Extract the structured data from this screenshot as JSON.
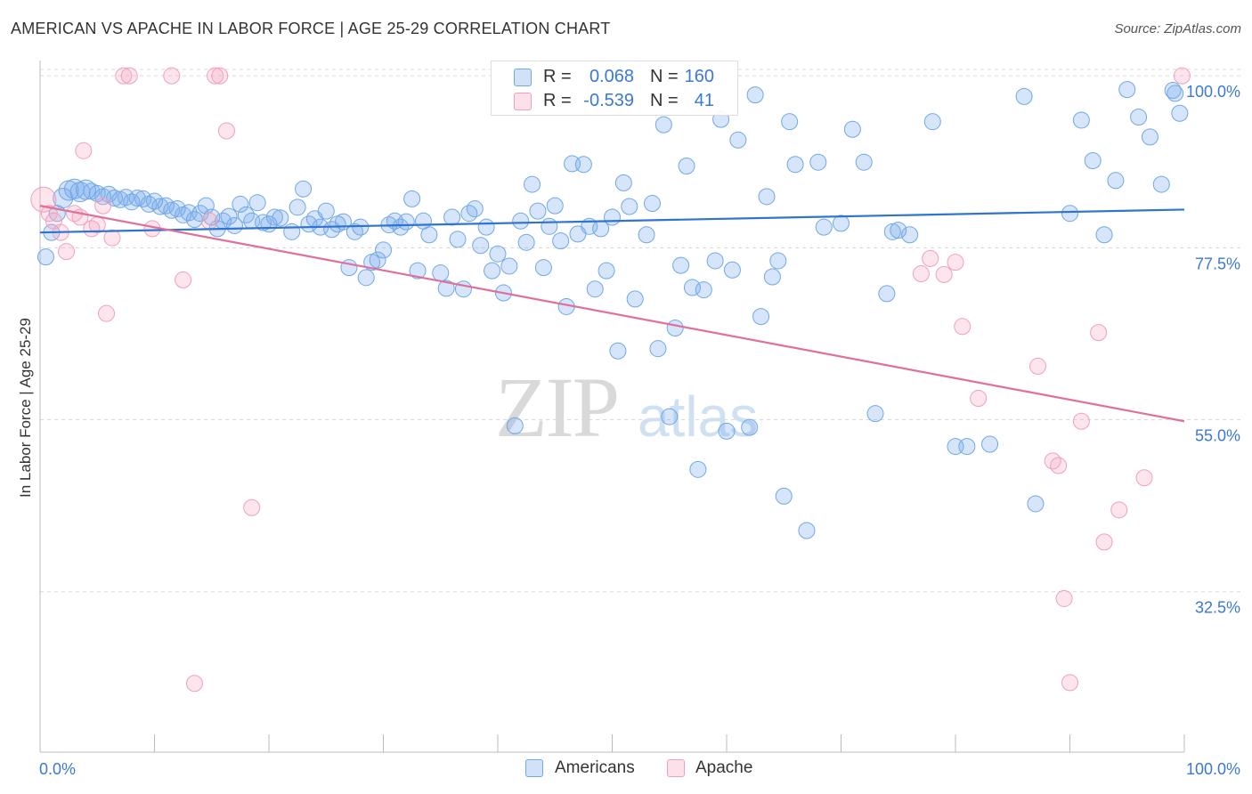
{
  "title": "AMERICAN VS APACHE IN LABOR FORCE | AGE 25-29 CORRELATION CHART",
  "source": "Source: ZipAtlas.com",
  "watermark": {
    "zip": "ZIP",
    "atlas": "atlas"
  },
  "legend": {
    "rows": [
      {
        "r_label": "R =",
        "r_value": "0.068",
        "n_label": "N =",
        "n_value": "160",
        "color": "#6fa8e8"
      },
      {
        "r_label": "R =",
        "r_value": "-0.539",
        "n_label": "N =",
        "n_value": "41",
        "color": "#f0a0bb"
      }
    ]
  },
  "bottom_legend": {
    "americans": "Americans",
    "apache": "Apache"
  },
  "chart_data": {
    "type": "scatter",
    "title": "AMERICAN VS APACHE IN LABOR FORCE | AGE 25-29 CORRELATION CHART",
    "xlabel": "",
    "ylabel": "In Labor Force | Age 25-29",
    "xlim": [
      0,
      100
    ],
    "ylim": [
      11.5,
      102
    ],
    "x_tick_labels": [
      "0.0%",
      "100.0%"
    ],
    "y_ticks": [
      32.5,
      55.0,
      77.5,
      100.0
    ],
    "y_tick_labels": [
      "32.5%",
      "55.0%",
      "77.5%",
      "100.0%"
    ],
    "grid": true,
    "series": [
      {
        "name": "Americans",
        "color": "#6fa8e8",
        "fill": "rgba(120,170,235,0.30)",
        "trend": {
          "x": [
            0,
            100
          ],
          "y": [
            79.5,
            82.5
          ]
        },
        "points": [
          [
            0.5,
            76.3
          ],
          [
            1.0,
            79.5
          ],
          [
            1.5,
            82.0
          ],
          [
            2.0,
            84.0
          ],
          [
            2.5,
            85.0
          ],
          [
            3.0,
            85.2
          ],
          [
            3.5,
            84.8
          ],
          [
            4.0,
            85.1
          ],
          [
            4.5,
            84.9
          ],
          [
            5.0,
            84.6
          ],
          [
            5.5,
            84.2
          ],
          [
            6.0,
            84.5
          ],
          [
            6.5,
            84.0
          ],
          [
            7.0,
            83.8
          ],
          [
            7.5,
            84.1
          ],
          [
            8.0,
            83.5
          ],
          [
            8.5,
            84.0
          ],
          [
            9.0,
            83.9
          ],
          [
            9.5,
            83.2
          ],
          [
            10.0,
            83.6
          ],
          [
            10.5,
            82.9
          ],
          [
            11.0,
            83.0
          ],
          [
            11.5,
            82.4
          ],
          [
            12.0,
            82.6
          ],
          [
            12.5,
            81.8
          ],
          [
            13.0,
            82.1
          ],
          [
            13.5,
            81.2
          ],
          [
            14.0,
            82.0
          ],
          [
            14.5,
            83.0
          ],
          [
            15.0,
            81.5
          ],
          [
            15.5,
            80.0
          ],
          [
            16.0,
            81.0
          ],
          [
            16.5,
            81.6
          ],
          [
            17.0,
            80.4
          ],
          [
            17.5,
            83.2
          ],
          [
            18.0,
            81.8
          ],
          [
            18.5,
            81.0
          ],
          [
            19.0,
            83.4
          ],
          [
            19.5,
            80.8
          ],
          [
            20.0,
            80.6
          ],
          [
            20.5,
            81.5
          ],
          [
            21.0,
            81.4
          ],
          [
            22.0,
            79.6
          ],
          [
            22.5,
            82.8
          ],
          [
            23.0,
            85.2
          ],
          [
            23.5,
            80.6
          ],
          [
            24.0,
            81.3
          ],
          [
            24.5,
            80.2
          ],
          [
            25.0,
            82.3
          ],
          [
            25.5,
            79.9
          ],
          [
            26.0,
            80.6
          ],
          [
            26.5,
            80.9
          ],
          [
            27.0,
            74.9
          ],
          [
            27.5,
            79.6
          ],
          [
            28.0,
            80.2
          ],
          [
            28.5,
            73.6
          ],
          [
            29.0,
            75.6
          ],
          [
            29.5,
            75.9
          ],
          [
            30.0,
            77.2
          ],
          [
            30.5,
            80.5
          ],
          [
            31.0,
            81.0
          ],
          [
            31.5,
            80.2
          ],
          [
            32.0,
            80.9
          ],
          [
            32.5,
            83.9
          ],
          [
            33.0,
            74.5
          ],
          [
            33.5,
            81.0
          ],
          [
            34.0,
            79.2
          ],
          [
            35.0,
            74.2
          ],
          [
            35.5,
            72.2
          ],
          [
            36.0,
            81.5
          ],
          [
            36.5,
            78.6
          ],
          [
            37.0,
            72.1
          ],
          [
            37.5,
            82.0
          ],
          [
            38.0,
            82.6
          ],
          [
            38.5,
            77.8
          ],
          [
            39.0,
            80.2
          ],
          [
            39.5,
            74.5
          ],
          [
            40.0,
            76.7
          ],
          [
            40.5,
            71.6
          ],
          [
            41.0,
            75.1
          ],
          [
            41.5,
            54.2
          ],
          [
            42.0,
            81.0
          ],
          [
            42.5,
            78.2
          ],
          [
            43.0,
            85.8
          ],
          [
            43.5,
            82.3
          ],
          [
            44.0,
            74.9
          ],
          [
            44.5,
            80.3
          ],
          [
            45.0,
            83.0
          ],
          [
            45.5,
            78.4
          ],
          [
            46.0,
            69.8
          ],
          [
            46.5,
            88.5
          ],
          [
            47.0,
            79.3
          ],
          [
            47.5,
            88.4
          ],
          [
            48.0,
            80.3
          ],
          [
            48.5,
            72.1
          ],
          [
            49.0,
            80.0
          ],
          [
            49.5,
            74.5
          ],
          [
            50.0,
            81.5
          ],
          [
            50.5,
            64.0
          ],
          [
            51.0,
            86.0
          ],
          [
            51.5,
            82.9
          ],
          [
            52.0,
            70.8
          ],
          [
            53.0,
            79.2
          ],
          [
            53.5,
            83.3
          ],
          [
            54.0,
            64.3
          ],
          [
            54.5,
            93.6
          ],
          [
            55.0,
            55.4
          ],
          [
            55.5,
            67.0
          ],
          [
            56.0,
            75.2
          ],
          [
            56.5,
            88.2
          ],
          [
            57.0,
            72.3
          ],
          [
            57.5,
            48.5
          ],
          [
            58.0,
            72.0
          ],
          [
            59.0,
            75.8
          ],
          [
            59.5,
            94.3
          ],
          [
            60.0,
            53.5
          ],
          [
            60.5,
            74.6
          ],
          [
            61.0,
            91.6
          ],
          [
            62.0,
            54.0
          ],
          [
            62.5,
            97.5
          ],
          [
            63.0,
            68.5
          ],
          [
            63.5,
            84.2
          ],
          [
            64.0,
            73.7
          ],
          [
            64.5,
            75.8
          ],
          [
            65.0,
            45.0
          ],
          [
            65.5,
            94.0
          ],
          [
            66.0,
            88.4
          ],
          [
            67.0,
            40.5
          ],
          [
            68.0,
            88.7
          ],
          [
            68.5,
            80.2
          ],
          [
            70.0,
            80.7
          ],
          [
            71.0,
            93.0
          ],
          [
            72.0,
            88.7
          ],
          [
            73.0,
            55.8
          ],
          [
            74.0,
            71.5
          ],
          [
            74.5,
            79.6
          ],
          [
            75.0,
            79.8
          ],
          [
            76.0,
            79.2
          ],
          [
            78.0,
            94.0
          ],
          [
            80.0,
            51.5
          ],
          [
            81.0,
            51.5
          ],
          [
            83.0,
            51.8
          ],
          [
            86.0,
            97.3
          ],
          [
            87.0,
            44.0
          ],
          [
            90.0,
            82.0
          ],
          [
            91.0,
            94.2
          ],
          [
            92.0,
            88.9
          ],
          [
            93.0,
            79.2
          ],
          [
            94.0,
            86.3
          ],
          [
            95.0,
            98.2
          ],
          [
            96.0,
            94.6
          ],
          [
            97.0,
            92.0
          ],
          [
            98.0,
            85.8
          ],
          [
            99.0,
            98.1
          ],
          [
            99.2,
            97.7
          ],
          [
            99.6,
            95.1
          ]
        ]
      },
      {
        "name": "Apache",
        "color": "#f0a0bb",
        "fill": "rgba(245,170,195,0.30)",
        "trend": {
          "x": [
            0,
            100
          ],
          "y": [
            83.0,
            54.8
          ]
        },
        "points": [
          [
            0.3,
            83.8
          ],
          [
            0.8,
            82.0
          ],
          [
            1.2,
            81.0
          ],
          [
            1.8,
            79.5
          ],
          [
            2.3,
            77.0
          ],
          [
            3.0,
            82.0
          ],
          [
            3.5,
            81.5
          ],
          [
            3.8,
            90.2
          ],
          [
            4.5,
            80.0
          ],
          [
            5.0,
            80.5
          ],
          [
            5.5,
            83.0
          ],
          [
            5.8,
            68.9
          ],
          [
            6.3,
            78.8
          ],
          [
            7.3,
            100.0
          ],
          [
            7.8,
            100.0
          ],
          [
            9.8,
            80.0
          ],
          [
            11.5,
            100.0
          ],
          [
            12.5,
            73.3
          ],
          [
            13.5,
            20.5
          ],
          [
            14.8,
            81.0
          ],
          [
            15.3,
            100.0
          ],
          [
            15.7,
            100.0
          ],
          [
            16.3,
            92.8
          ],
          [
            18.5,
            43.5
          ],
          [
            77.0,
            74.1
          ],
          [
            77.8,
            76.1
          ],
          [
            79.0,
            74.0
          ],
          [
            80.0,
            75.6
          ],
          [
            80.6,
            67.2
          ],
          [
            82.0,
            57.8
          ],
          [
            87.2,
            62.0
          ],
          [
            88.5,
            49.6
          ],
          [
            89.0,
            49.0
          ],
          [
            89.5,
            31.6
          ],
          [
            90.0,
            20.6
          ],
          [
            91.0,
            54.8
          ],
          [
            92.5,
            66.4
          ],
          [
            93.0,
            39.0
          ],
          [
            94.3,
            43.2
          ],
          [
            96.5,
            47.4
          ],
          [
            99.8,
            100.0
          ]
        ]
      }
    ]
  }
}
